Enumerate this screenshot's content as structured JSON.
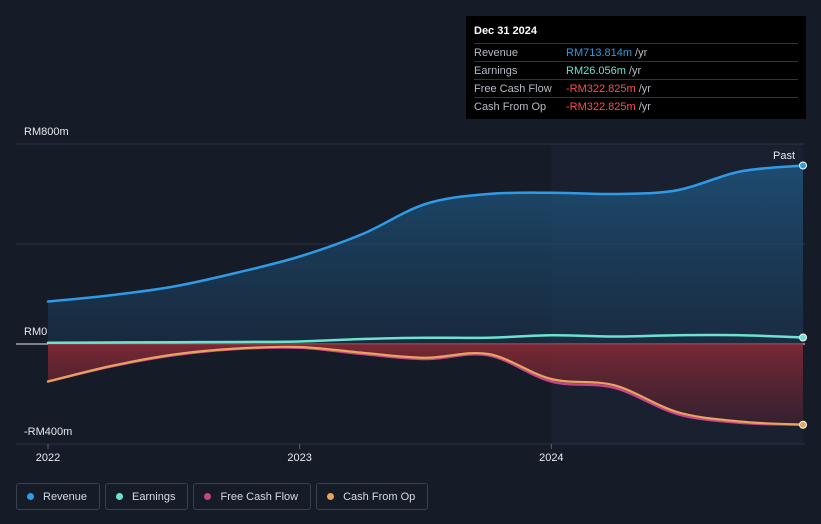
{
  "tooltip": {
    "date": "Dec 31 2024",
    "rows": [
      {
        "label": "Revenue",
        "value": "RM713.814m",
        "unit": "/yr",
        "color": "#2f9be6"
      },
      {
        "label": "Earnings",
        "value": "RM26.056m",
        "unit": "/yr",
        "color": "#6be3cf"
      },
      {
        "label": "Free Cash Flow",
        "value": "-RM322.825m",
        "unit": "/yr",
        "color": "#ff4d4d"
      },
      {
        "label": "Cash From Op",
        "value": "-RM322.825m",
        "unit": "/yr",
        "color": "#ff4d4d"
      }
    ]
  },
  "past_label": "Past",
  "legend": [
    {
      "label": "Revenue",
      "color": "#2f9be6"
    },
    {
      "label": "Earnings",
      "color": "#6be3cf"
    },
    {
      "label": "Free Cash Flow",
      "color": "#c4458a"
    },
    {
      "label": "Cash From Op",
      "color": "#e8a35c"
    }
  ],
  "chart_data": {
    "type": "line",
    "y_tick_labels": [
      "RM800m",
      "RM0",
      "-RM400m"
    ],
    "y_ticks": [
      800,
      0,
      -400
    ],
    "ylim": [
      -400,
      800
    ],
    "x_tick_labels": [
      "2022",
      "2023",
      "2024"
    ],
    "x_ticks": [
      2022,
      2023,
      2024
    ],
    "xlim": [
      2022.0,
      2025.0
    ],
    "grid": "horizontal",
    "legend_position": "bottom",
    "series": [
      {
        "name": "Revenue",
        "color": "#2f9be6",
        "x": [
          2022.0,
          2022.25,
          2022.5,
          2022.75,
          2023.0,
          2023.25,
          2023.5,
          2023.75,
          2024.0,
          2024.25,
          2024.5,
          2024.75,
          2025.0
        ],
        "y": [
          170,
          195,
          230,
          285,
          350,
          440,
          560,
          600,
          605,
          600,
          615,
          690,
          714
        ]
      },
      {
        "name": "Earnings",
        "color": "#6be3cf",
        "x": [
          2022.0,
          2022.25,
          2022.5,
          2022.75,
          2023.0,
          2023.25,
          2023.5,
          2023.75,
          2024.0,
          2024.25,
          2024.5,
          2024.75,
          2025.0
        ],
        "y": [
          5,
          6,
          7,
          8,
          10,
          20,
          25,
          25,
          35,
          30,
          35,
          35,
          26
        ]
      },
      {
        "name": "Free Cash Flow",
        "color": "#c4458a",
        "x": [
          2022.0,
          2022.25,
          2022.5,
          2022.75,
          2023.0,
          2023.25,
          2023.5,
          2023.75,
          2024.0,
          2024.25,
          2024.5,
          2024.75,
          2025.0
        ],
        "y": [
          -150,
          -90,
          -45,
          -20,
          -15,
          -40,
          -60,
          -45,
          -150,
          -175,
          -280,
          -315,
          -323
        ]
      },
      {
        "name": "Cash From Op",
        "color": "#e8a35c",
        "x": [
          2022.0,
          2022.25,
          2022.5,
          2022.75,
          2023.0,
          2023.25,
          2023.5,
          2023.75,
          2024.0,
          2024.25,
          2024.5,
          2024.75,
          2025.0
        ],
        "y": [
          -150,
          -88,
          -42,
          -18,
          -12,
          -35,
          -55,
          -40,
          -140,
          -165,
          -272,
          -310,
          -323
        ]
      }
    ]
  }
}
